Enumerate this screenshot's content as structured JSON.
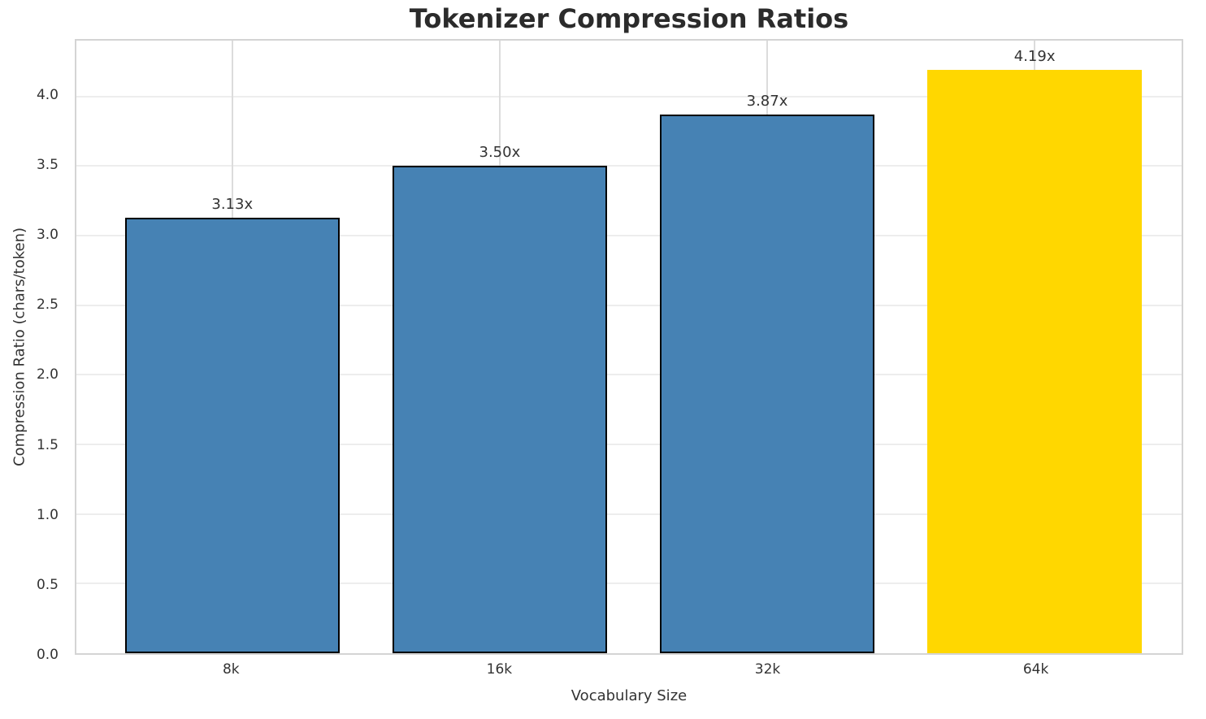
{
  "chart_data": {
    "type": "bar",
    "title": "Tokenizer Compression Ratios",
    "xlabel": "Vocabulary Size",
    "ylabel": "Compression Ratio (chars/token)",
    "categories": [
      "8k",
      "16k",
      "32k",
      "64k"
    ],
    "values": [
      3.13,
      3.5,
      3.87,
      4.19
    ],
    "bar_labels": [
      "3.13x",
      "3.50x",
      "3.87x",
      "4.19x"
    ],
    "bar_colors": [
      "#4682B4",
      "#4682B4",
      "#4682B4",
      "#FFD700"
    ],
    "bar_edge_colors": [
      "#000000",
      "#000000",
      "#000000",
      "#FFD700"
    ],
    "series_color": "#4682B4",
    "highlight_color": "#FFD700",
    "ylim": [
      0,
      4.4
    ],
    "yticks": [
      "0.0",
      "0.5",
      "1.0",
      "1.5",
      "2.0",
      "2.5",
      "3.0",
      "3.5",
      "4.0"
    ],
    "grid": true,
    "legend": "none",
    "x_tick_positions_pct": [
      14.1,
      38.3,
      62.5,
      86.7
    ],
    "bar_width_pct": 19.43
  }
}
